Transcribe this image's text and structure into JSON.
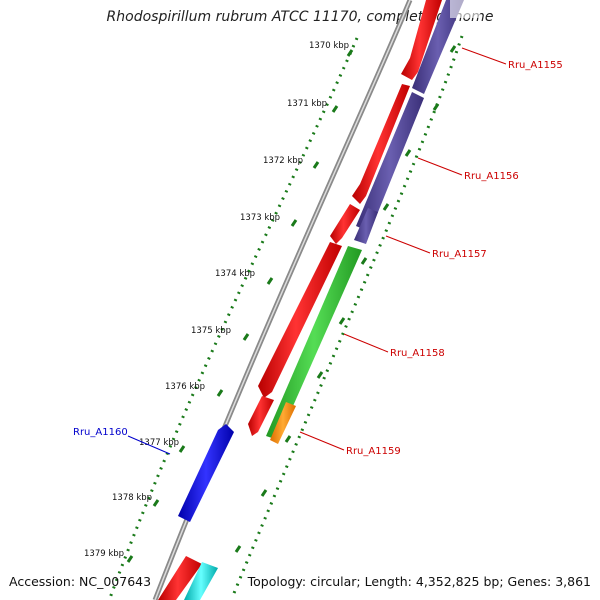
{
  "title": "Rhodospirillum rubrum ATCC 11170, complete genome",
  "footer": {
    "accession": "Accession: NC_007643",
    "topology": "Topology: circular; Length: 4,352,825 bp; Genes: 3,861"
  },
  "ticks": [
    {
      "label": "1370 kbp",
      "kbp": 1370
    },
    {
      "label": "1371 kbp",
      "kbp": 1371
    },
    {
      "label": "1372 kbp",
      "kbp": 1372
    },
    {
      "label": "1373 kbp",
      "kbp": 1373
    },
    {
      "label": "1374 kbp",
      "kbp": 1374
    },
    {
      "label": "1375 kbp",
      "kbp": 1375
    },
    {
      "label": "1376 kbp",
      "kbp": 1376
    },
    {
      "label": "1377 kbp",
      "kbp": 1377
    },
    {
      "label": "1378 kbp",
      "kbp": 1378
    },
    {
      "label": "1379 kbp",
      "kbp": 1379
    }
  ],
  "genes": [
    {
      "label": "Rru_A1155",
      "label_color": "#cc0000"
    },
    {
      "label": "Rru_A1156",
      "label_color": "#cc0000"
    },
    {
      "label": "Rru_A1157",
      "label_color": "#cc0000"
    },
    {
      "label": "Rru_A1158",
      "label_color": "#cc0000"
    },
    {
      "label": "Rru_A1159",
      "label_color": "#cc0000"
    },
    {
      "label": "Rru_A1160",
      "label_color": "#0000cc"
    }
  ],
  "colors": {
    "backbone": "#8a8a8a",
    "cds_red": "#ee1111",
    "cds_purple": "#4b3f8f",
    "cds_green": "#33bb33",
    "cds_orange": "#ff8c00",
    "cds_blue": "#1010dd",
    "cds_cyan": "#00dddd",
    "tick_green": "#1a7a1a"
  }
}
